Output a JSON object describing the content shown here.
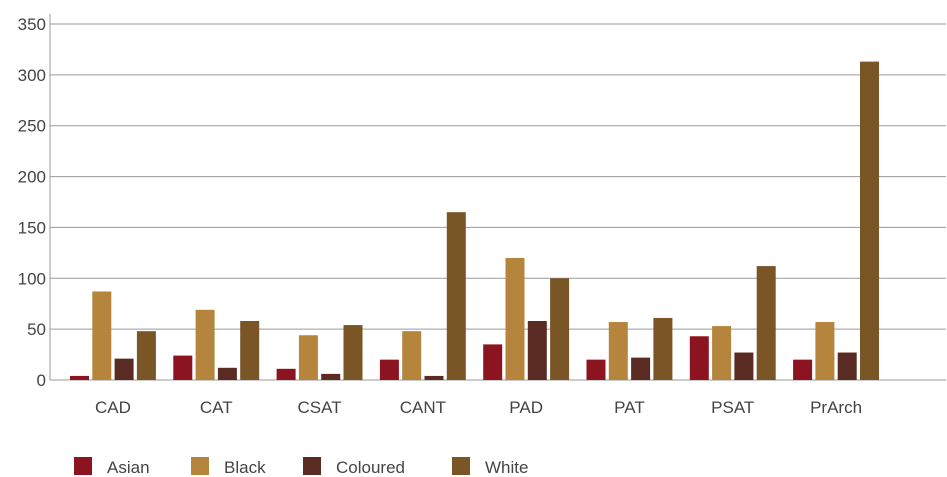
{
  "chart_data": {
    "type": "bar",
    "categories": [
      "CAD",
      "CAT",
      "CSAT",
      "CANT",
      "PAD",
      "PAT",
      "PSAT",
      "PrArch"
    ],
    "series": [
      {
        "name": "Asian",
        "color": "#8b1420",
        "values": [
          4,
          24,
          11,
          20,
          35,
          20,
          43,
          20
        ]
      },
      {
        "name": "Black",
        "color": "#b5853e",
        "values": [
          87,
          69,
          44,
          48,
          120,
          57,
          53,
          57
        ]
      },
      {
        "name": "Coloured",
        "color": "#5a2b22",
        "values": [
          21,
          12,
          6,
          4,
          58,
          22,
          27,
          27
        ]
      },
      {
        "name": "White",
        "color": "#7a5526",
        "values": [
          48,
          58,
          54,
          165,
          100,
          61,
          112,
          313
        ]
      }
    ],
    "yticks": [
      0,
      50,
      100,
      150,
      200,
      250,
      300,
      350
    ],
    "ylim": [
      0,
      350
    ],
    "grid": true,
    "legend_position": "bottom-left",
    "title": "",
    "xlabel": "",
    "ylabel": ""
  }
}
